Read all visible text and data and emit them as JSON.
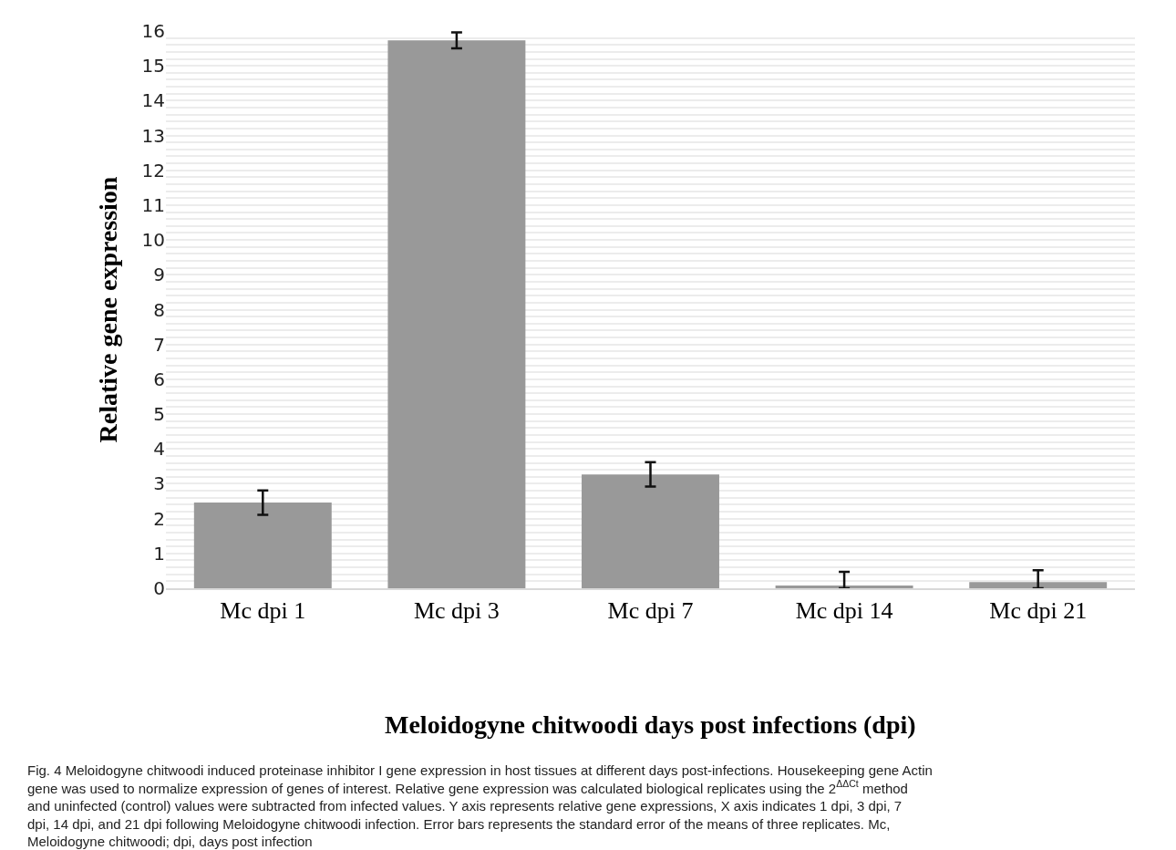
{
  "chart_data": {
    "type": "bar",
    "ylabel": "Relative gene expression",
    "xlabel": "Meloidogyne chitwoodi days post infections (dpi)",
    "categories": [
      "Mc dpi 1",
      "Mc dpi 3",
      "Mc dpi 7",
      "Mc dpi 14",
      "Mc dpi 21"
    ],
    "values": [
      2.46,
      15.73,
      3.27,
      0.08,
      0.18
    ],
    "errors": [
      0.35,
      0.23,
      0.35,
      [
        0,
        0.47
      ],
      [
        0,
        0.52
      ]
    ],
    "color": "#999999",
    "ylim": [
      0,
      16
    ],
    "yticks": [
      0,
      {
        "value": 0.2,
        "label": null
      },
      {
        "value": 0.4,
        "label": null
      },
      {
        "value": 0.6,
        "label": null
      },
      {
        "value": 0.8,
        "label": null
      },
      1,
      {
        "value": 1.2,
        "label": null
      },
      {
        "value": 1.4,
        "label": null
      },
      {
        "value": 1.6,
        "label": null
      },
      {
        "value": 1.8,
        "label": null
      },
      2,
      {
        "value": 2.2,
        "label": null
      },
      {
        "value": 2.4,
        "label": null
      },
      {
        "value": 2.6,
        "label": null
      },
      {
        "value": 2.8,
        "label": null
      },
      3,
      {
        "value": 3.2,
        "label": null
      },
      {
        "value": 3.4,
        "label": null
      },
      {
        "value": 3.6,
        "label": null
      },
      {
        "value": 3.8,
        "label": null
      },
      4,
      {
        "value": 4.2,
        "label": null
      },
      {
        "value": 4.4,
        "label": null
      },
      {
        "value": 4.6,
        "label": null
      },
      {
        "value": 4.8,
        "label": null
      },
      5,
      {
        "value": 5.2,
        "label": null
      },
      {
        "value": 5.4,
        "label": null
      },
      {
        "value": 5.6,
        "label": null
      },
      {
        "value": 5.8,
        "label": null
      },
      6,
      {
        "value": 6.2,
        "label": null
      },
      {
        "value": 6.4,
        "label": null
      },
      {
        "value": 6.6,
        "label": null
      },
      {
        "value": 6.8,
        "label": null
      },
      7,
      {
        "value": 7.2,
        "label": null
      },
      {
        "value": 7.4,
        "label": null
      },
      {
        "value": 7.6,
        "label": null
      },
      {
        "value": 7.8,
        "label": null
      },
      8,
      {
        "value": 8.2,
        "label": null
      },
      {
        "value": 8.4,
        "label": null
      },
      {
        "value": 8.6,
        "label": null
      },
      {
        "value": 8.8,
        "label": null
      },
      9,
      {
        "value": 9.2,
        "label": null
      },
      {
        "value": 9.4,
        "label": null
      },
      {
        "value": 9.6,
        "label": null
      },
      {
        "value": 9.8,
        "label": null
      },
      10,
      {
        "value": 10.2,
        "label": null
      },
      {
        "value": 10.4,
        "label": null
      },
      {
        "value": 10.6,
        "label": null
      },
      {
        "value": 10.8,
        "label": null
      },
      11,
      {
        "value": 11.2,
        "label": null
      },
      {
        "value": 11.4,
        "label": null
      },
      {
        "value": 11.6,
        "label": null
      },
      {
        "value": 11.8,
        "label": null
      },
      12,
      {
        "value": 12.2,
        "label": null
      },
      {
        "value": 12.4,
        "label": null
      },
      {
        "value": 12.6,
        "label": null
      },
      {
        "value": 12.8,
        "label": null
      },
      13,
      {
        "value": 13.2,
        "label": null
      },
      {
        "value": 13.4,
        "label": null
      },
      {
        "value": 13.6,
        "label": null
      },
      {
        "value": 13.8,
        "label": null
      },
      14,
      {
        "value": 14.2,
        "label": null
      },
      {
        "value": 14.4,
        "label": null
      },
      {
        "value": 14.6,
        "label": null
      },
      {
        "value": 14.8,
        "label": null
      },
      15,
      {
        "value": 15.2,
        "label": null
      },
      {
        "value": 15.4,
        "label": null
      },
      {
        "value": 15.6,
        "label": null
      },
      {
        "value": 15.8,
        "label": null
      },
      16
    ],
    "grid": "y",
    "legend": false,
    "annotations": [
      "Fig. 4 Meloidogyne chitwoodi induced proteinase inhibitor I gene expression in host tissues at different days post-infections. Housekeeping gene Actin gene was used to normalize expression of genes of interest. Relative gene expression was calculated biological replicates using the 2$^{ΔΔCt}$ method and uninfected (control) values were subtracted from infected values. Y axis represents relative gene expressions, X axis indicates 1 dpi, 3 dpi, 7 dpi, 14 dpi, and 21 dpi following Meloidogyne chitwoodi infection. Error bars represents the standard error of the means of three replicates. Mc, Meloidogyne chitwoodi; dpi, days post infection"
    ]
  }
}
